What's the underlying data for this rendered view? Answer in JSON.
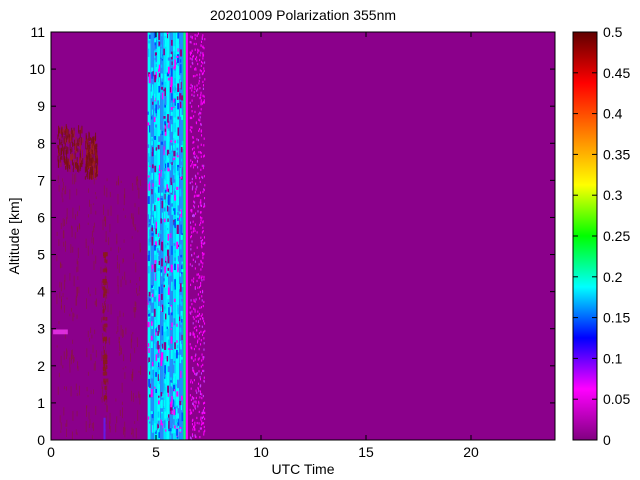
{
  "chart_data": {
    "type": "heatmap",
    "title": "20201009 Polarization 355nm",
    "xlabel": "UTC Time",
    "ylabel": "Altitude [km]",
    "xlim": [
      0,
      24
    ],
    "ylim": [
      0,
      11
    ],
    "x_ticks": [
      0,
      5,
      10,
      15,
      20
    ],
    "y_ticks": [
      0,
      1,
      2,
      3,
      4,
      5,
      6,
      7,
      8,
      9,
      10,
      11
    ],
    "colorbar": {
      "range": [
        0,
        0.5
      ],
      "ticks": [
        "0",
        "0.05",
        "0.1",
        "0.15",
        "0.2",
        "0.25",
        "0.3",
        "0.35",
        "0.4",
        "0.45",
        "0.5"
      ],
      "colormap": [
        "#800080",
        "#ff00ff",
        "#0000ff",
        "#00ffff",
        "#00ff00",
        "#ffff00",
        "#ff8000",
        "#ff0000",
        "#600000"
      ]
    },
    "background_value": 0.02,
    "background_color": "#8b008b",
    "regions": [
      {
        "feature": "high noise band",
        "x_range": [
          4.6,
          6.3
        ],
        "y_range": [
          0,
          11
        ],
        "value": 0.15
      },
      {
        "feature": "speckle band",
        "x_range": [
          6.6,
          7.3
        ],
        "y_range": [
          0,
          11
        ],
        "value": 0.05
      },
      {
        "feature": "cloud",
        "x_range": [
          0.3,
          1.5
        ],
        "y_range": [
          7.2,
          8.3
        ],
        "value": 0.45
      },
      {
        "feature": "cloud",
        "x_range": [
          1.6,
          2.2
        ],
        "y_range": [
          7.0,
          8.1
        ],
        "value": 0.45
      },
      {
        "feature": "aerosol streaks",
        "x_range": [
          0,
          4.5
        ],
        "y_range": [
          0,
          7
        ],
        "value": 0.4
      }
    ]
  }
}
